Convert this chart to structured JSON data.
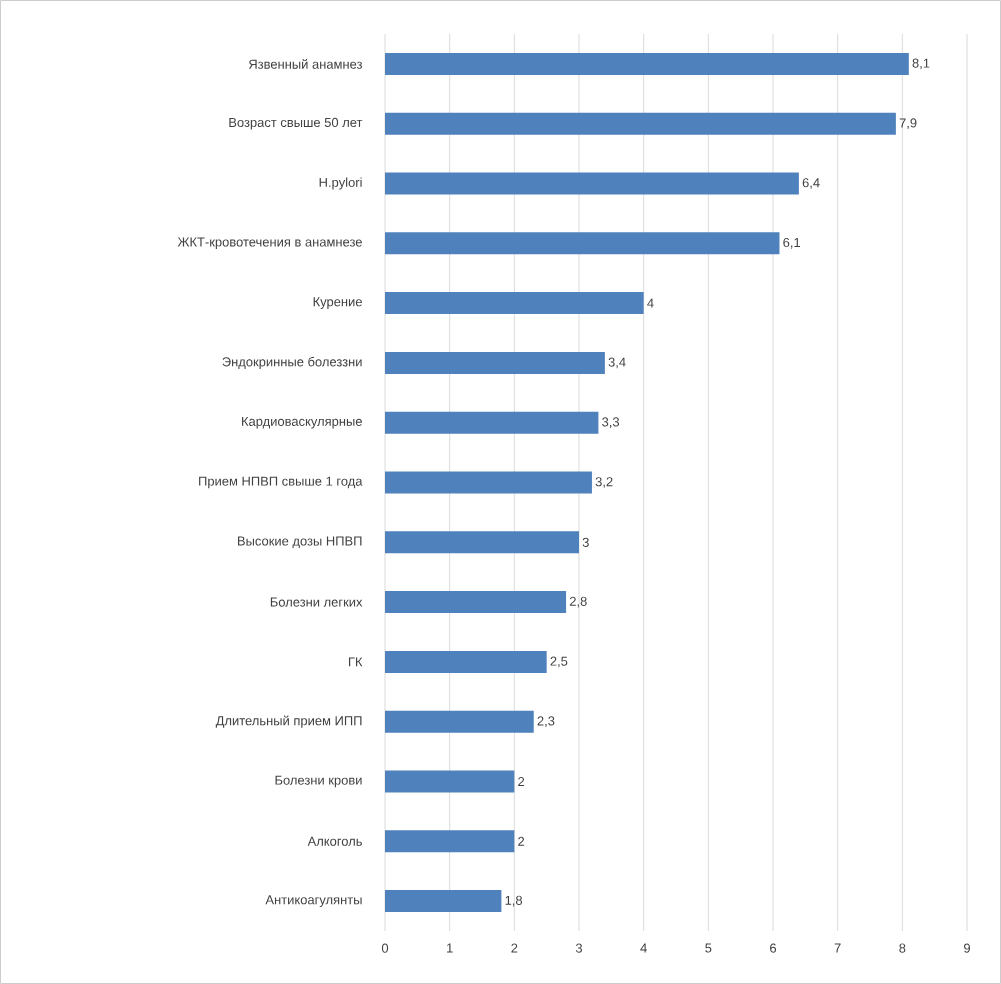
{
  "chart_data": {
    "type": "bar",
    "orientation": "horizontal",
    "categories": [
      "Язвенный анамнез",
      "Возраст свыше 50 лет",
      "H.pylori",
      "ЖКТ-кровотечения в анамнезе",
      "Курение",
      "Эндокринные болеззни",
      "Кардиоваскулярные",
      "Прием НПВП свыше 1 года",
      "Высокие дозы НПВП",
      "Болезни легких",
      "ГК",
      "Длительный прием ИПП",
      "Болезни крови",
      "Алкоголь",
      "Антикоагулянты"
    ],
    "values": [
      8.1,
      7.9,
      6.4,
      6.1,
      4,
      3.4,
      3.3,
      3.2,
      3,
      2.8,
      2.5,
      2.3,
      2,
      2,
      1.8
    ],
    "value_labels": [
      "8,1",
      "7,9",
      "6,4",
      "6,1",
      "4",
      "3,4",
      "3,3",
      "3,2",
      "3",
      "2,8",
      "2,5",
      "2,3",
      "2",
      "2",
      "1,8"
    ],
    "color": "#4f81bd",
    "xlim": [
      0,
      9
    ],
    "xticks": [
      0,
      1,
      2,
      3,
      4,
      5,
      6,
      7,
      8,
      9
    ],
    "grid": "x"
  }
}
